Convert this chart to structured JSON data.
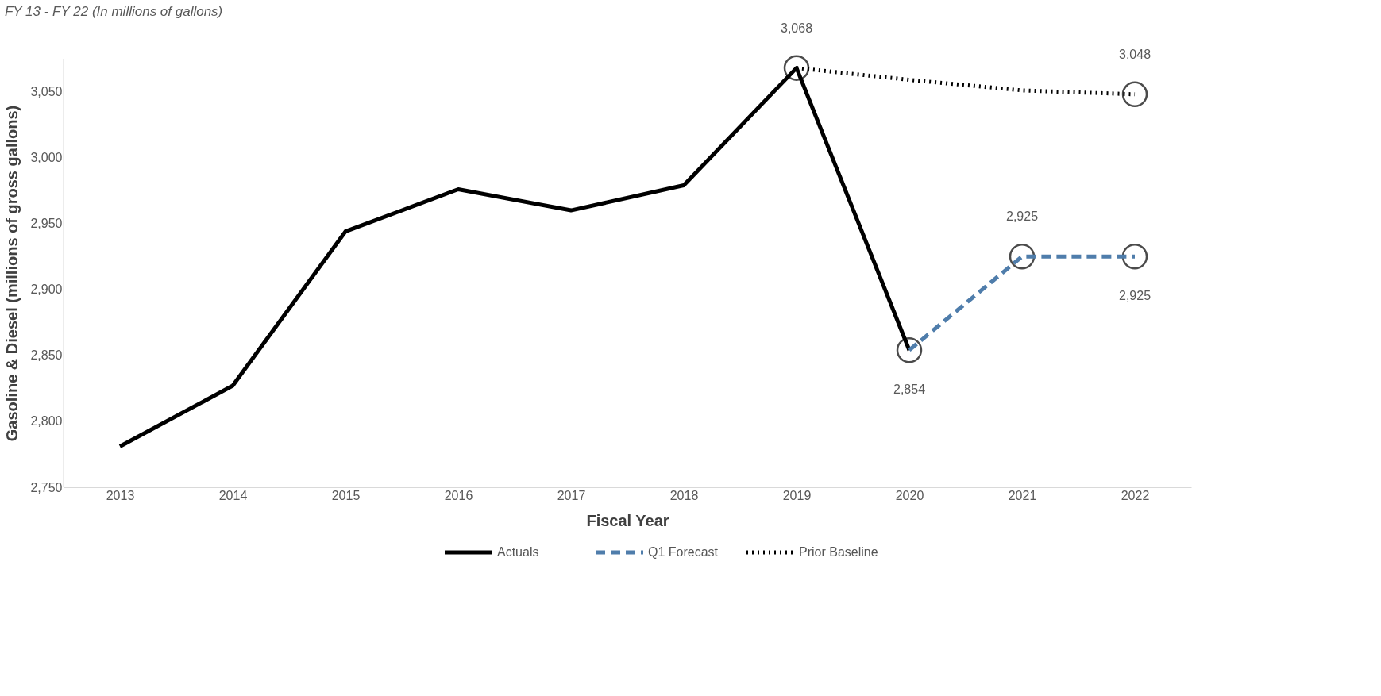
{
  "chart_data": {
    "type": "line",
    "subtitle": "FY 13 - FY 22 (In millions of gallons)",
    "xlabel": "Fiscal Year",
    "ylabel": "Gasoline & Diesel (millions of gross gallons)",
    "categories": [
      "2013",
      "2014",
      "2015",
      "2016",
      "2017",
      "2018",
      "2019",
      "2020",
      "2021",
      "2022"
    ],
    "series": [
      {
        "name": "Actuals",
        "color": "#000000",
        "line_style": "solid",
        "values": [
          2781,
          2827,
          2944,
          2976,
          2960,
          2979,
          3068,
          2854,
          null,
          null
        ]
      },
      {
        "name": "Q1 Forecast",
        "color": "#4f7dab",
        "line_style": "dashed",
        "values": [
          null,
          null,
          null,
          null,
          null,
          null,
          null,
          2854,
          2925,
          2925
        ]
      },
      {
        "name": "Prior Baseline",
        "color": "#000000",
        "line_style": "dotted",
        "values": [
          null,
          null,
          null,
          null,
          null,
          null,
          3068,
          3059,
          3051,
          3048
        ]
      }
    ],
    "ylim": [
      2750,
      3075
    ],
    "yticks": [
      {
        "value": 2750,
        "label": "2,750"
      },
      {
        "value": 2800,
        "label": "2,800"
      },
      {
        "value": 2850,
        "label": "2,850"
      },
      {
        "value": 2900,
        "label": "2,900"
      },
      {
        "value": 2950,
        "label": "2,950"
      },
      {
        "value": 3000,
        "label": "3,000"
      },
      {
        "value": 3050,
        "label": "3,050"
      }
    ],
    "annotations": [
      {
        "text": "3,068",
        "x": "2019",
        "y": 3068
      },
      {
        "text": "2,854",
        "x": "2020",
        "y": 2854
      },
      {
        "text": "2,925",
        "x": "2021",
        "y": 2925
      },
      {
        "text": "3,048",
        "x": "2022",
        "y": 3048
      },
      {
        "text": "2,925",
        "x": "2022",
        "y": 2925
      }
    ],
    "grid": false,
    "legend": "bottom"
  }
}
